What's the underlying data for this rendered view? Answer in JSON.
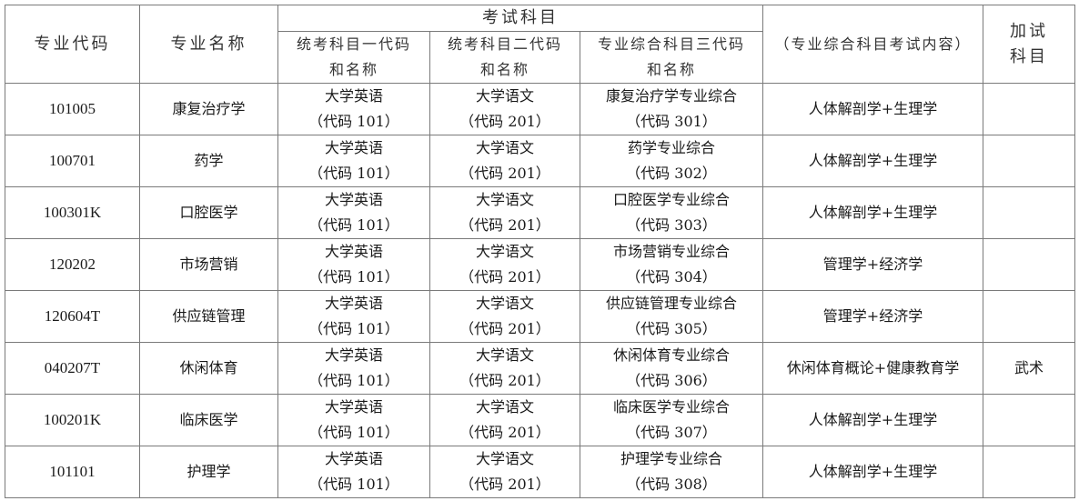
{
  "header": {
    "code": "专业代码",
    "name": "专业名称",
    "exam_subjects": "考试科目",
    "subject1": [
      "统考科目一代码",
      "和名称"
    ],
    "subject2": [
      "统考科目二代码",
      "和名称"
    ],
    "subject3": [
      "专业综合科目三代码",
      "和名称"
    ],
    "content": "（专业综合科目考试内容）",
    "extra": [
      "加试",
      "科目"
    ]
  },
  "rows": [
    {
      "code": "101005",
      "name": "康复治疗学",
      "s1": [
        "大学英语",
        "（代码 101）"
      ],
      "s2": [
        "大学语文",
        "（代码 201）"
      ],
      "s3": [
        "康复治疗学专业综合",
        "（代码 301）"
      ],
      "content": "人体解剖学+生理学",
      "extra": ""
    },
    {
      "code": "100701",
      "name": "药学",
      "s1": [
        "大学英语",
        "（代码 101）"
      ],
      "s2": [
        "大学语文",
        "（代码 201）"
      ],
      "s3": [
        "药学专业综合",
        "（代码 302）"
      ],
      "content": "人体解剖学+生理学",
      "extra": ""
    },
    {
      "code": "100301K",
      "name": "口腔医学",
      "s1": [
        "大学英语",
        "（代码 101）"
      ],
      "s2": [
        "大学语文",
        "（代码 201）"
      ],
      "s3": [
        "口腔医学专业综合",
        "（代码 303）"
      ],
      "content": "人体解剖学+生理学",
      "extra": ""
    },
    {
      "code": "120202",
      "name": "市场营销",
      "s1": [
        "大学英语",
        "（代码 101）"
      ],
      "s2": [
        "大学语文",
        "（代码 201）"
      ],
      "s3": [
        "市场营销专业综合",
        "（代码 304）"
      ],
      "content": "管理学+经济学",
      "extra": ""
    },
    {
      "code": "120604T",
      "name": "供应链管理",
      "s1": [
        "大学英语",
        "（代码 101）"
      ],
      "s2": [
        "大学语文",
        "（代码 201）"
      ],
      "s3": [
        "供应链管理专业综合",
        "（代码 305）"
      ],
      "content": "管理学+经济学",
      "extra": ""
    },
    {
      "code": "040207T",
      "name": "休闲体育",
      "s1": [
        "大学英语",
        "（代码 101）"
      ],
      "s2": [
        "大学语文",
        "（代码 201）"
      ],
      "s3": [
        "休闲体育专业综合",
        "（代码 306）"
      ],
      "content": "休闲体育概论+健康教育学",
      "extra": "武术"
    },
    {
      "code": "100201K",
      "name": "临床医学",
      "s1": [
        "大学英语",
        "（代码 101）"
      ],
      "s2": [
        "大学语文",
        "（代码 201）"
      ],
      "s3": [
        "临床医学专业综合",
        "（代码 307）"
      ],
      "content": "人体解剖学+生理学",
      "extra": ""
    },
    {
      "code": "101101",
      "name": "护理学",
      "s1": [
        "大学英语",
        "（代码 101）"
      ],
      "s2": [
        "大学语文",
        "（代码 201）"
      ],
      "s3": [
        "护理学专业综合",
        "（代码 308）"
      ],
      "content": "人体解剖学+生理学",
      "extra": ""
    }
  ]
}
